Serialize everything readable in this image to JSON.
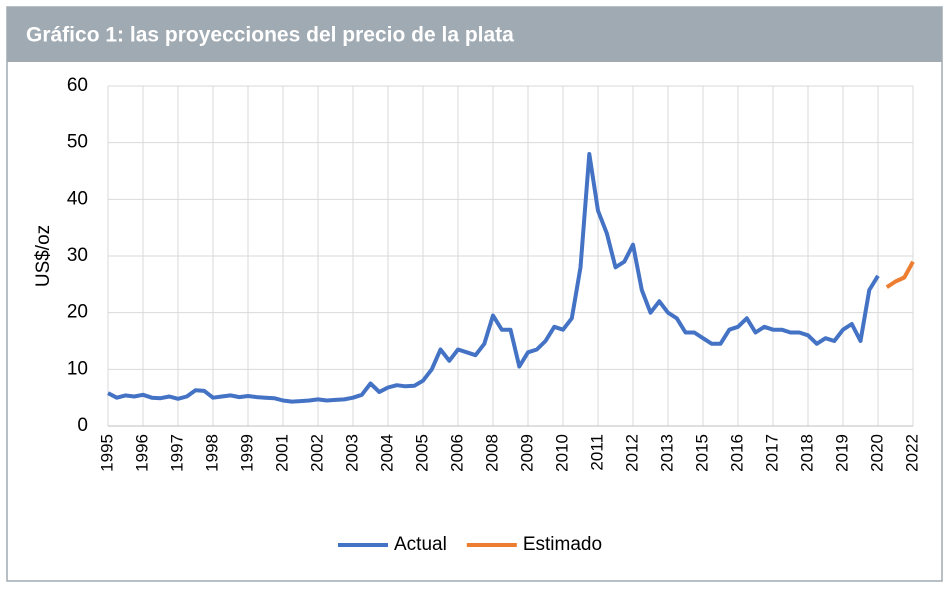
{
  "chart_data": {
    "type": "line",
    "title": "Gráfico 1: las proyecciones del precio de la plata",
    "y_label": "US$/oz",
    "categories": [
      "1995",
      null,
      null,
      null,
      "1996",
      null,
      null,
      null,
      "1997",
      null,
      null,
      null,
      "1998",
      null,
      null,
      null,
      "1999",
      null,
      null,
      null,
      "2001",
      null,
      null,
      null,
      "2002",
      null,
      null,
      null,
      "2003",
      null,
      null,
      null,
      "2004",
      null,
      null,
      null,
      "2005",
      null,
      null,
      null,
      "2006",
      null,
      null,
      null,
      "2008",
      null,
      null,
      null,
      "2009",
      null,
      null,
      null,
      "2010",
      null,
      null,
      null,
      "2011",
      null,
      null,
      null,
      "2012",
      null,
      null,
      null,
      "2013",
      null,
      null,
      null,
      "2015",
      null,
      null,
      null,
      "2016",
      null,
      null,
      null,
      "2017",
      null,
      null,
      null,
      "2018",
      null,
      null,
      null,
      "2019",
      null,
      null,
      null,
      "2020",
      null,
      null,
      null,
      "2022"
    ],
    "series": [
      {
        "name": "Actual",
        "color": "#4472c4",
        "values": [
          5.8,
          5.0,
          5.4,
          5.2,
          5.5,
          5.0,
          4.9,
          5.2,
          4.8,
          5.2,
          6.3,
          6.2,
          5.0,
          5.2,
          5.4,
          5.1,
          5.3,
          5.1,
          5.0,
          4.9,
          4.5,
          4.3,
          4.4,
          4.5,
          4.7,
          4.5,
          4.6,
          4.7,
          5.0,
          5.5,
          7.5,
          6.0,
          6.8,
          7.2,
          7.0,
          7.1,
          8.0,
          10.0,
          13.5,
          11.5,
          13.5,
          13.0,
          12.5,
          14.5,
          19.5,
          17.0,
          17.0,
          10.5,
          13.0,
          13.5,
          15.0,
          17.5,
          17.0,
          19.0,
          28.0,
          48.0,
          38.0,
          34.0,
          28.0,
          29.0,
          32.0,
          24.0,
          20.0,
          22.0,
          20.0,
          19.0,
          16.5,
          16.5,
          15.5,
          14.5,
          14.5,
          17.0,
          17.5,
          19.0,
          16.5,
          17.5,
          17.0,
          17.0,
          16.5,
          16.5,
          16.0,
          14.5,
          15.5,
          15.0,
          17.0,
          18.0,
          15.0,
          24.0,
          26.5,
          null,
          null,
          null,
          null
        ]
      },
      {
        "name": "Estimado",
        "color": "#ed7d31",
        "values": [
          null,
          null,
          null,
          null,
          null,
          null,
          null,
          null,
          null,
          null,
          null,
          null,
          null,
          null,
          null,
          null,
          null,
          null,
          null,
          null,
          null,
          null,
          null,
          null,
          null,
          null,
          null,
          null,
          null,
          null,
          null,
          null,
          null,
          null,
          null,
          null,
          null,
          null,
          null,
          null,
          null,
          null,
          null,
          null,
          null,
          null,
          null,
          null,
          null,
          null,
          null,
          null,
          null,
          null,
          null,
          null,
          null,
          null,
          null,
          null,
          null,
          null,
          null,
          null,
          null,
          null,
          null,
          null,
          null,
          null,
          null,
          null,
          null,
          null,
          null,
          null,
          null,
          null,
          null,
          null,
          null,
          null,
          null,
          null,
          null,
          null,
          null,
          null,
          null,
          24.5,
          25.5,
          26.2,
          29.0
        ]
      }
    ],
    "ylim": [
      0,
      60
    ],
    "yticks": [
      0,
      10,
      20,
      30,
      40,
      50,
      60
    ],
    "grid": true,
    "legend": "bottom"
  }
}
